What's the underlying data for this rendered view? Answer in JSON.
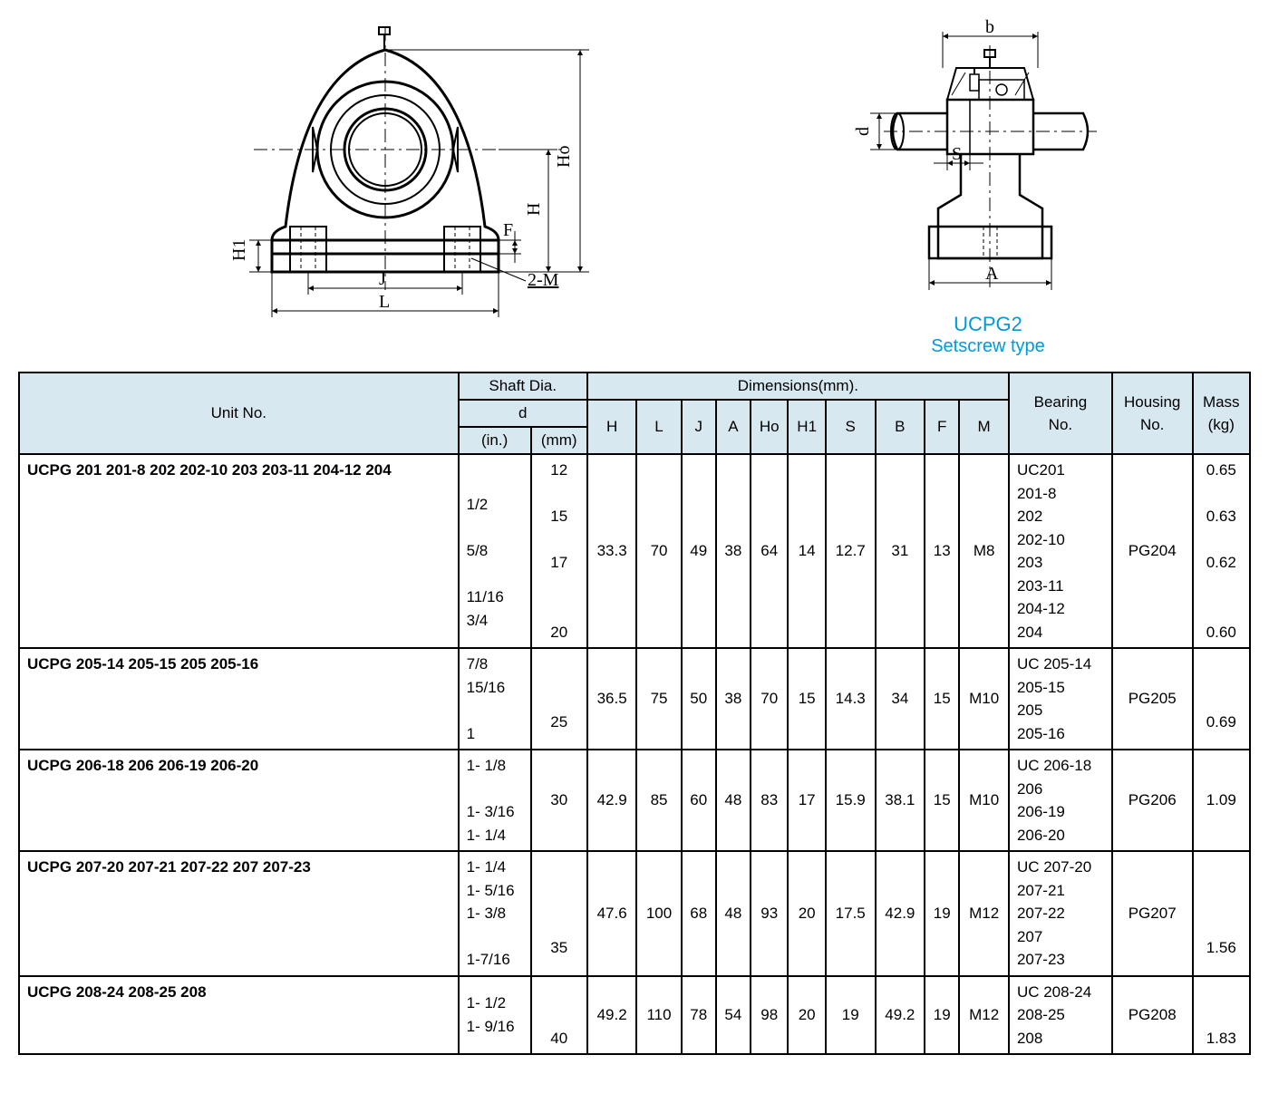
{
  "product": {
    "name": "UCPG2",
    "subtitle": "Setscrew type"
  },
  "diagram_labels": {
    "H1": "H1",
    "J": "J",
    "L": "L",
    "F": "F",
    "M2": "2-M",
    "H": "H",
    "Ho": "Ho",
    "b": "b",
    "S": "S",
    "d": "d",
    "A": "A"
  },
  "colors": {
    "stroke": "#000000",
    "background": "#ffffff",
    "header_bg": "#d8e8f0",
    "accent": "#0099dd",
    "border": "#000000"
  },
  "table": {
    "headers": {
      "unit_no": "Unit No.",
      "shaft_dia": "Shaft Dia.",
      "d": "d",
      "in": "(in.)",
      "mm": "(mm)",
      "dimensions": "Dimensions(mm).",
      "H": "H",
      "L": "L",
      "J": "J",
      "A": "A",
      "Ho": "Ho",
      "H1": "H1",
      "S": "S",
      "B": "B",
      "F": "F",
      "M": "M",
      "bearing_no": "Bearing\nNo.",
      "housing_no": "Housing\nNo.",
      "mass": "Mass\n(kg)"
    },
    "rows": [
      {
        "unit_no": "UCPG 201\n          201-8\n          202\n          202-10\n          203\n          203-11\n          204-12\n          204",
        "d_in": "\n1/2\n\n5/8\n\n11/16\n3/4\n",
        "d_mm": "12\n\n15\n\n17\n\n\n20",
        "H": "33.3",
        "L": "70",
        "J": "49",
        "A": "38",
        "Ho": "64",
        "H1": "14",
        "S": "12.7",
        "B": "31",
        "F": "13",
        "M": "M8",
        "bearing": "UC201\n     201-8\n     202\n     202-10\n     203\n     203-11\n     204-12\n     204",
        "housing": "PG204",
        "mass": "0.65\n\n0.63\n\n0.62\n\n\n0.60"
      },
      {
        "unit_no": "UCPG 205-14\n          205-15\n          205\n          205-16",
        "d_in": "7/8\n15/16\n\n1",
        "d_mm": "\n\n25\n",
        "H": "36.5",
        "L": "75",
        "J": "50",
        "A": "38",
        "Ho": "70",
        "H1": "15",
        "S": "14.3",
        "B": "34",
        "F": "15",
        "M": "M10",
        "bearing": "UC 205-14\n     205-15\n     205\n     205-16",
        "housing": "PG205",
        "mass": "\n\n0.69\n"
      },
      {
        "unit_no": "UCPG 206-18\n          206\n          206-19\n          206-20",
        "d_in": "1- 1/8\n\n1- 3/16\n1- 1/4",
        "d_mm": "\n30\n\n",
        "H": "42.9",
        "L": "85",
        "J": "60",
        "A": "48",
        "Ho": "83",
        "H1": "17",
        "S": "15.9",
        "B": "38.1",
        "F": "15",
        "M": "M10",
        "bearing": "UC 206-18\n     206\n     206-19\n     206-20",
        "housing": "PG206",
        "mass": "\n1.09\n\n"
      },
      {
        "unit_no": "UCPG 207-20\n          207-21\n          207-22\n          207\n          207-23",
        "d_in": "1- 1/4\n1- 5/16\n1- 3/8\n\n1-7/16",
        "d_mm": "\n\n\n35\n",
        "H": "47.6",
        "L": "100",
        "J": "68",
        "A": "48",
        "Ho": "93",
        "H1": "20",
        "S": "17.5",
        "B": "42.9",
        "F": "19",
        "M": "M12",
        "bearing": "UC 207-20\n     207-21\n     207-22\n     207\n     207-23",
        "housing": "PG207",
        "mass": "\n\n\n1.56\n"
      },
      {
        "unit_no": "UCPG 208-24\n          208-25\n          208",
        "d_in": "1- 1/2\n1- 9/16\n",
        "d_mm": "\n\n40",
        "H": "49.2",
        "L": "110",
        "J": "78",
        "A": "54",
        "Ho": "98",
        "H1": "20",
        "S": "19",
        "B": "49.2",
        "F": "19",
        "M": "M12",
        "bearing": "UC 208-24\n     208-25\n     208",
        "housing": "PG208",
        "mass": "\n\n1.83"
      }
    ]
  }
}
